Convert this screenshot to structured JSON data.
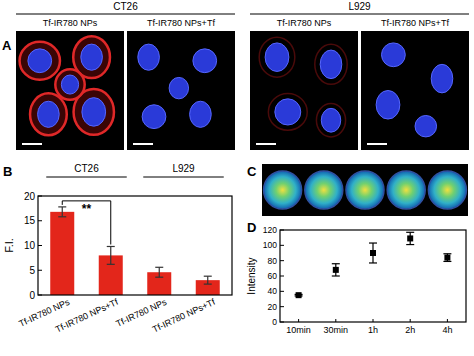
{
  "panel_labels": [
    "A",
    "B",
    "C",
    "D"
  ],
  "microscopy": {
    "groups": [
      "CT26",
      "L929"
    ],
    "conditions": [
      "Tf-IR780 NPs",
      "Tf-IR780 NPs+Tf",
      "Tf-IR780 NPs",
      "Tf-IR780 NPs+Tf"
    ]
  },
  "chart_data": [
    {
      "type": "bar",
      "y_label": "F.I.",
      "categories": [
        "Tf-IR780 NPs",
        "Tf-IR780 NPs+Tf",
        "Tf-IR780 NPs",
        "Tf-IR780 NPs+Tf"
      ],
      "group_labels": [
        "CT26",
        "L929"
      ],
      "values": [
        16.8,
        8.0,
        4.6,
        3.0
      ],
      "errors": [
        1.0,
        1.8,
        1.0,
        0.8
      ],
      "color": "#e3261b",
      "ylim": [
        0,
        20
      ],
      "yticks": [
        0,
        5,
        10,
        15,
        20
      ],
      "grid": false,
      "annotations": [
        {
          "text": "**",
          "from": 0,
          "to": 1
        }
      ]
    },
    {
      "type": "scatter",
      "y_label": "Intensity",
      "categories": [
        "10min",
        "30min",
        "1h",
        "2h",
        "4h"
      ],
      "values": [
        35,
        68,
        90,
        109,
        84
      ],
      "errors": [
        1,
        8,
        13,
        8,
        5
      ],
      "color": "#000000",
      "marker": "square",
      "ylim": [
        0,
        120
      ],
      "yticks": [
        0,
        20,
        40,
        60,
        80,
        100,
        120
      ],
      "grid": false
    }
  ]
}
